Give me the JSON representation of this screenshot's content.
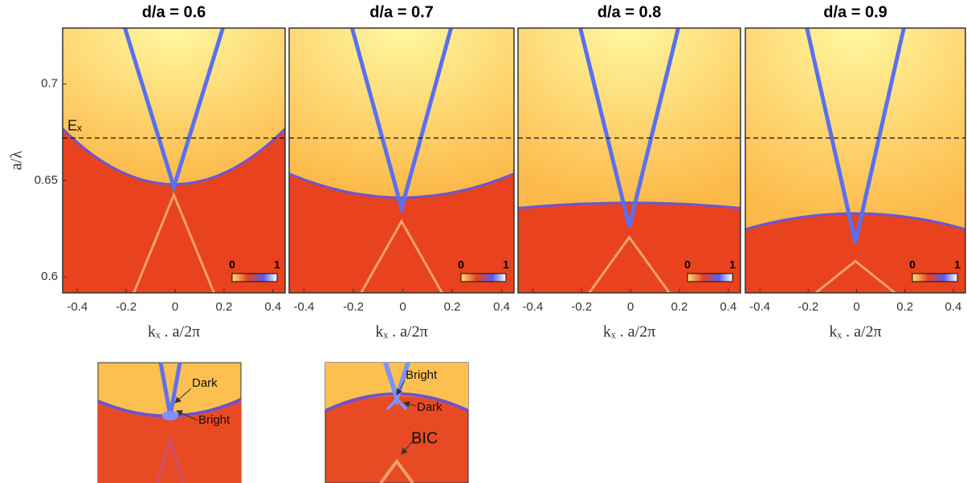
{
  "chart_data": [
    {
      "type": "heatmap",
      "title": "d/a = 0.6",
      "xlabel": "kₓ . a/2π",
      "ylabel": "a/λ",
      "xlim": [
        -0.46,
        0.45
      ],
      "ylim": [
        0.5917,
        0.729
      ],
      "xticks": [
        -0.4,
        -0.2,
        0,
        0.2,
        0.4
      ],
      "yticks": [
        0.6,
        0.65,
        0.7
      ],
      "hline": 0.672,
      "hline_label": "Eₓ",
      "colorbar_ticks": [
        0,
        1
      ]
    },
    {
      "type": "heatmap",
      "title": "d/a = 0.7",
      "xlabel": "kₓ . a/2π",
      "xlim": [
        -0.46,
        0.45
      ],
      "ylim": [
        0.5917,
        0.729
      ],
      "xticks": [
        -0.4,
        -0.2,
        0,
        0.2,
        0.4
      ],
      "hline": 0.672,
      "colorbar_ticks": [
        0,
        1
      ]
    },
    {
      "type": "heatmap",
      "title": "d/a = 0.8",
      "xlabel": "kₓ . a/2π",
      "xlim": [
        -0.46,
        0.45
      ],
      "ylim": [
        0.5917,
        0.729
      ],
      "xticks": [
        -0.4,
        -0.2,
        0,
        0.2,
        0.4
      ],
      "hline": 0.672,
      "colorbar_ticks": [
        0,
        1
      ]
    },
    {
      "type": "heatmap",
      "title": "d/a = 0.9",
      "xlabel": "kₓ . a/2π",
      "xlim": [
        -0.46,
        0.45
      ],
      "ylim": [
        0.5917,
        0.729
      ],
      "xticks": [
        -0.4,
        -0.2,
        0,
        0.2,
        0.4
      ],
      "hline": 0.672,
      "colorbar_ticks": [
        0,
        1
      ]
    }
  ],
  "insets": [
    {
      "labels": [
        "Dark",
        "Bright"
      ]
    },
    {
      "labels": [
        "Bright",
        "Dark",
        "BIC"
      ]
    }
  ]
}
